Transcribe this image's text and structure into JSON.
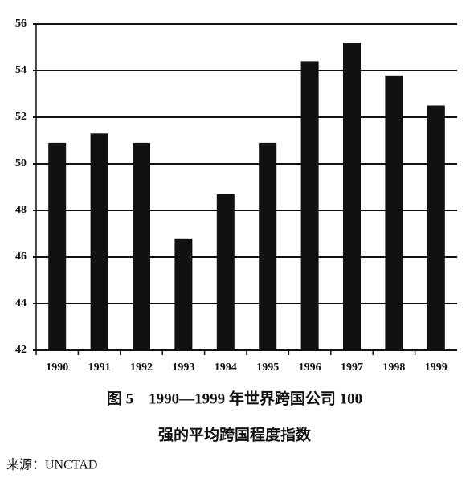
{
  "chart_data": {
    "type": "bar",
    "title": [
      "图 5　1990—1999 年世界跨国公司 100",
      "强的平均跨国程度指数"
    ],
    "source": "来源：UNCTAD",
    "categories": [
      "1990",
      "1991",
      "1992",
      "1993",
      "1994",
      "1995",
      "1996",
      "1997",
      "1998",
      "1999"
    ],
    "values": [
      50.9,
      51.3,
      50.9,
      46.8,
      48.7,
      50.9,
      54.4,
      55.2,
      53.8,
      52.5
    ],
    "color": "#111111",
    "ylim": [
      42,
      56
    ],
    "yticks": [
      42,
      44,
      46,
      48,
      50,
      52,
      54,
      56
    ],
    "grid": true
  }
}
